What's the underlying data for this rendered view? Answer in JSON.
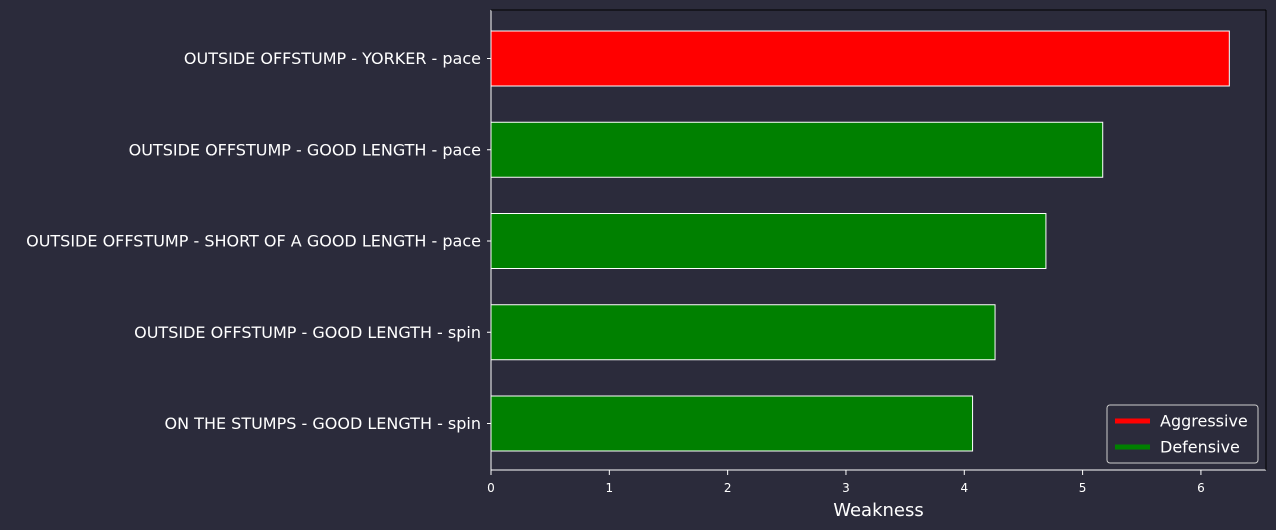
{
  "chart_data": {
    "type": "bar",
    "orientation": "horizontal",
    "categories": [
      "OUTSIDE OFFSTUMP - YORKER - pace",
      "OUTSIDE OFFSTUMP - GOOD LENGTH - pace",
      "OUTSIDE OFFSTUMP - SHORT OF A GOOD LENGTH - pace",
      "OUTSIDE OFFSTUMP - GOOD LENGTH - spin",
      "ON THE STUMPS - GOOD LENGTH - spin"
    ],
    "values": [
      6.24,
      5.17,
      4.69,
      4.26,
      4.07
    ],
    "bar_types": [
      "Aggressive",
      "Defensive",
      "Defensive",
      "Defensive",
      "Defensive"
    ],
    "xlabel": "Weakness",
    "ylabel": "",
    "xlim": [
      0,
      6.55
    ],
    "xticks": [
      0,
      1,
      2,
      3,
      4,
      5,
      6
    ],
    "grid": false,
    "legend": {
      "placement": "bottom-right",
      "entries": [
        {
          "label": "Aggressive",
          "color": "#ff0000"
        },
        {
          "label": "Defensive",
          "color": "#008000"
        }
      ]
    },
    "colors": {
      "background": "#2b2b3b",
      "axis": "#ffffff",
      "bar_edge": "#ffffff",
      "Aggressive": "#ff0000",
      "Defensive": "#008000"
    }
  }
}
